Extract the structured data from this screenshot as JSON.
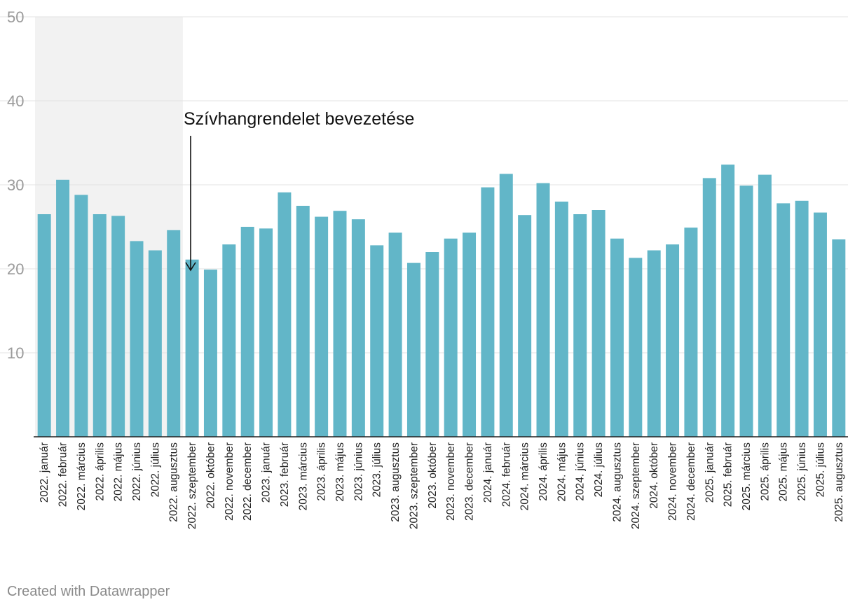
{
  "chart_data": {
    "type": "bar",
    "title": "",
    "xlabel": "",
    "ylabel": "",
    "ylim": [
      0,
      50
    ],
    "yticks": [
      10,
      20,
      30,
      40,
      50
    ],
    "grid": true,
    "bar_color": "#62b6c8",
    "highlight_band_color": "#f2f2f2",
    "highlight_band": [
      "2022. január",
      "2022. augusztus"
    ],
    "categories": [
      "2022. január",
      "2022. február",
      "2022. március",
      "2022. április",
      "2022. május",
      "2022. június",
      "2022. július",
      "2022. augusztus",
      "2022. szeptember",
      "2022. október",
      "2022. november",
      "2022. december",
      "2023. január",
      "2023. február",
      "2023. március",
      "2023. április",
      "2023. május",
      "2023. június",
      "2023. július",
      "2023. augusztus",
      "2023. szeptember",
      "2023. október",
      "2023. november",
      "2023. december",
      "2024. január",
      "2024. február",
      "2024. március",
      "2024. április",
      "2024. május",
      "2024. június",
      "2024. július",
      "2024. augusztus",
      "2024. szeptember",
      "2024. október",
      "2024. november",
      "2024. december",
      "2025. január",
      "2025. február",
      "2025. március",
      "2025. április",
      "2025. május",
      "2025. június",
      "2025. július",
      "2025. augusztus"
    ],
    "values": [
      26.5,
      30.6,
      28.8,
      26.5,
      26.3,
      23.3,
      22.2,
      24.6,
      21.1,
      19.9,
      22.9,
      25.0,
      24.8,
      29.1,
      27.5,
      26.2,
      26.9,
      25.9,
      22.8,
      24.3,
      20.7,
      22.0,
      23.6,
      24.3,
      29.7,
      31.3,
      26.4,
      30.2,
      28.0,
      26.5,
      27.0,
      23.6,
      21.3,
      22.2,
      22.9,
      24.9,
      30.8,
      32.4,
      29.9,
      31.2,
      27.8,
      28.1,
      26.7,
      23.5
    ],
    "annotations": [
      {
        "text": "Szívhangrendelet bevezetése",
        "target": "2022. szeptember"
      }
    ]
  },
  "footer": {
    "credit": "Created with Datawrapper"
  }
}
